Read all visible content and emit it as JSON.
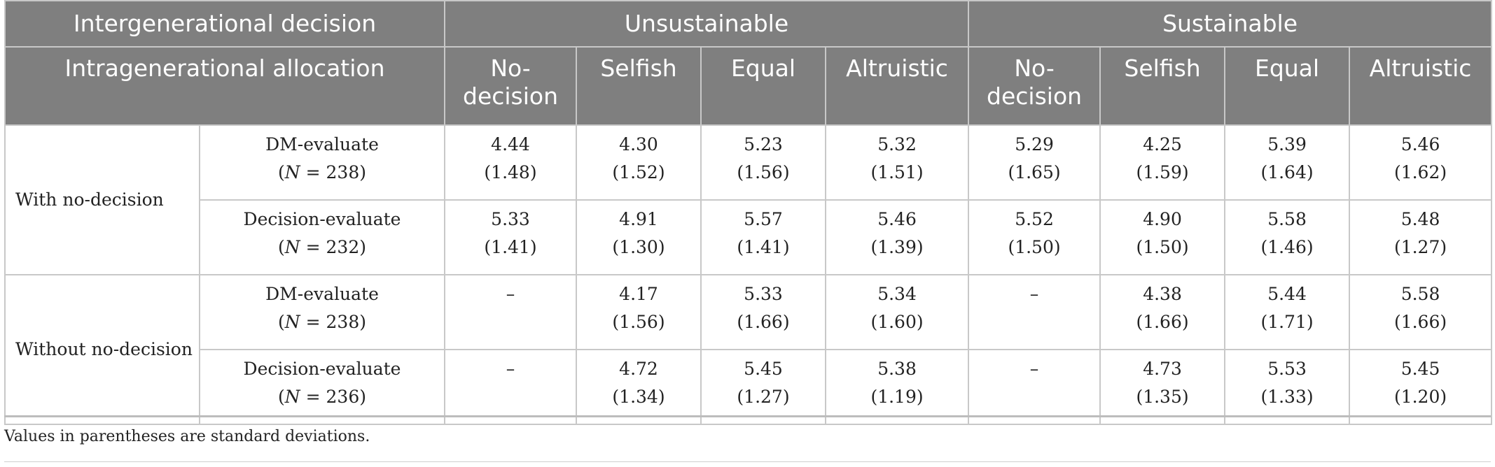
{
  "header": {
    "row1_label": "Intergenerational decision",
    "row2_label": "Intragenerational allocation",
    "groups": [
      "Unsustainable",
      "Sustainable"
    ],
    "columns": [
      [
        "No-",
        "decision"
      ],
      [
        "Selfish"
      ],
      [
        "Equal"
      ],
      [
        "Altruistic"
      ],
      [
        "No-",
        "decision"
      ],
      [
        "Selfish"
      ],
      [
        "Equal"
      ],
      [
        "Altruistic"
      ]
    ]
  },
  "groups": [
    {
      "label": "With no-decision",
      "rows": [
        {
          "condition": "DM-evaluate",
          "n_label": "N",
          "n_value": " = 238)",
          "cells": [
            [
              "4.44",
              "(1.48)"
            ],
            [
              "4.30",
              "(1.52)"
            ],
            [
              "5.23",
              "(1.56)"
            ],
            [
              "5.32",
              "(1.51)"
            ],
            [
              "5.29",
              "(1.65)"
            ],
            [
              "4.25",
              "(1.59)"
            ],
            [
              "5.39",
              "(1.64)"
            ],
            [
              "5.46",
              "(1.62)"
            ]
          ]
        },
        {
          "condition": "Decision-evaluate",
          "n_label": "N",
          "n_value": " = 232)",
          "cells": [
            [
              "5.33",
              "(1.41)"
            ],
            [
              "4.91",
              "(1.30)"
            ],
            [
              "5.57",
              "(1.41)"
            ],
            [
              "5.46",
              "(1.39)"
            ],
            [
              "5.52",
              "(1.50)"
            ],
            [
              "4.90",
              "(1.50)"
            ],
            [
              "5.58",
              "(1.46)"
            ],
            [
              "5.48",
              "(1.27)"
            ]
          ]
        }
      ]
    },
    {
      "label": "Without no-decision",
      "rows": [
        {
          "condition": "DM-evaluate",
          "n_label": "N",
          "n_value": " = 238)",
          "cells": [
            [
              "–",
              ""
            ],
            [
              "4.17",
              "(1.56)"
            ],
            [
              "5.33",
              "(1.66)"
            ],
            [
              "5.34",
              "(1.60)"
            ],
            [
              "–",
              ""
            ],
            [
              "4.38",
              "(1.66)"
            ],
            [
              "5.44",
              "(1.71)"
            ],
            [
              "5.58",
              "(1.66)"
            ]
          ]
        },
        {
          "condition": "Decision-evaluate",
          "n_label": "N",
          "n_value": " = 236)",
          "cells": [
            [
              "–",
              ""
            ],
            [
              "4.72",
              "(1.34)"
            ],
            [
              "5.45",
              "(1.27)"
            ],
            [
              "5.38",
              "(1.19)"
            ],
            [
              "–",
              ""
            ],
            [
              "4.73",
              "(1.35)"
            ],
            [
              "5.53",
              "(1.33)"
            ],
            [
              "5.45",
              "(1.20)"
            ]
          ]
        }
      ]
    }
  ],
  "footnote": "Values in parentheses are standard deviations."
}
